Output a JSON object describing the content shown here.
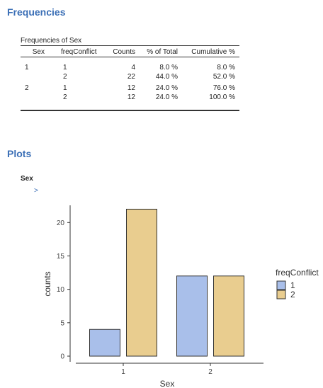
{
  "frequencies_title": "Frequencies",
  "table": {
    "caption": "Frequencies of Sex",
    "headers": [
      "Sex",
      "freqConflict",
      "Counts",
      "% of Total",
      "Cumulative %"
    ],
    "rows": [
      [
        "1",
        "1",
        "4",
        "8.0 %",
        "8.0 %"
      ],
      [
        "",
        "2",
        "22",
        "44.0 %",
        "52.0 %"
      ],
      [
        "2",
        "1",
        "12",
        "24.0 %",
        "76.0 %"
      ],
      [
        "",
        "2",
        "12",
        "24.0 %",
        "100.0 %"
      ]
    ]
  },
  "plots_title": "Plots",
  "plot_heading": "Sex",
  "expander": ">",
  "colors": {
    "heading": "#3b6fb6",
    "series1": "#a9bfea",
    "series2": "#e9cd8f"
  },
  "chart_data": {
    "type": "bar",
    "categories": [
      "1",
      "2"
    ],
    "series": [
      {
        "name": "1",
        "values": [
          4,
          12
        ]
      },
      {
        "name": "2",
        "values": [
          22,
          12
        ]
      }
    ],
    "xlabel": "Sex",
    "ylabel": "counts",
    "ylim": [
      0,
      23
    ],
    "yticks": [
      0,
      5,
      10,
      15,
      20
    ],
    "legend_title": "freqConflict",
    "legend_position": "right",
    "grid": false
  }
}
